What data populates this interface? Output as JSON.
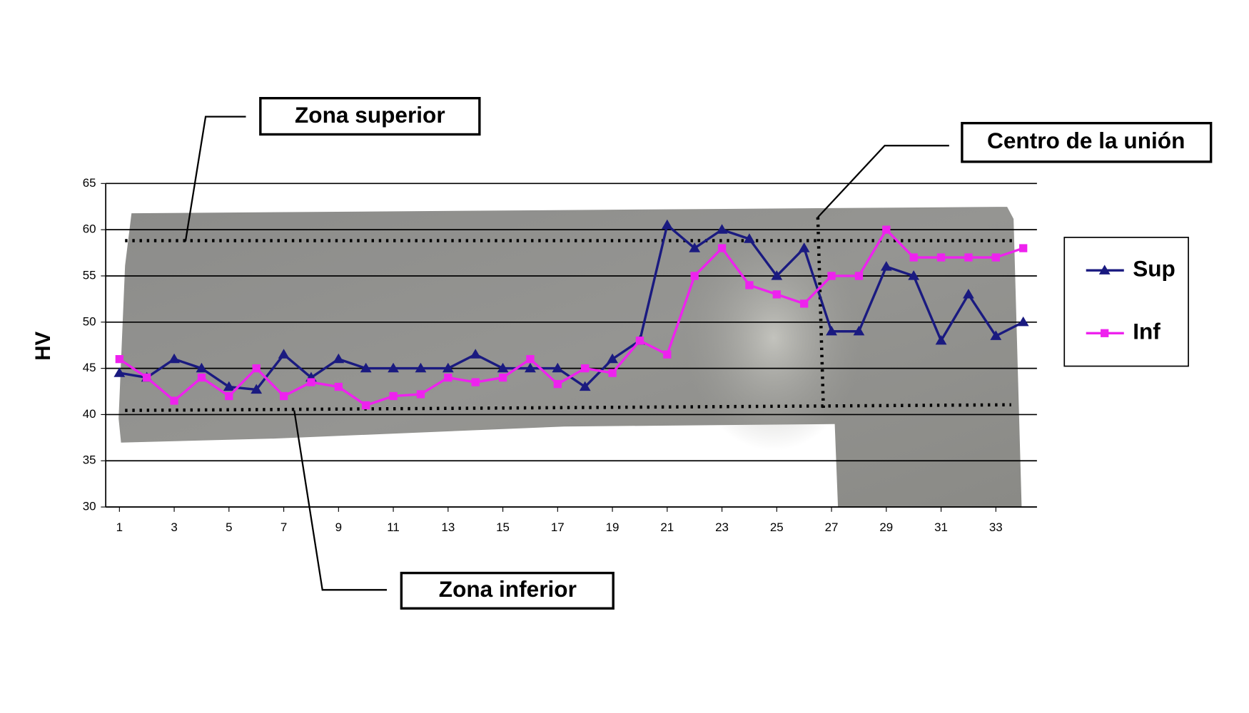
{
  "chart_data": {
    "type": "line",
    "y_label": "HV",
    "annotations": [
      "Zona superior",
      "Centro de la unión",
      "Zona inferior"
    ],
    "x": [
      1,
      2,
      3,
      4,
      5,
      6,
      7,
      8,
      9,
      10,
      11,
      12,
      13,
      14,
      15,
      16,
      17,
      18,
      19,
      20,
      21,
      22,
      23,
      24,
      25,
      26,
      27,
      28,
      29,
      30,
      31,
      32,
      33,
      34
    ],
    "xlim": [
      0.5,
      34.5
    ],
    "xticks": [
      1,
      3,
      5,
      7,
      9,
      11,
      13,
      15,
      17,
      19,
      21,
      23,
      25,
      27,
      29,
      31,
      33
    ],
    "ylim": [
      30,
      65
    ],
    "yticks": [
      30,
      35,
      40,
      45,
      50,
      55,
      60,
      65
    ],
    "grid": true,
    "legend": "right",
    "series": [
      {
        "name": "Sup",
        "color": "#1a1a80",
        "marker": "triangle",
        "values": [
          44.5,
          44,
          46,
          45,
          43,
          42.7,
          46.5,
          44,
          46,
          45,
          45,
          45,
          45,
          46.5,
          45,
          45,
          45,
          43,
          46,
          48,
          60.5,
          58,
          60,
          59,
          55,
          58,
          49,
          49,
          56,
          55,
          48,
          53,
          48.5,
          50
        ]
      },
      {
        "name": "Inf",
        "color": "#ee22ee",
        "marker": "square",
        "values": [
          46,
          44,
          41.5,
          44,
          42,
          45,
          42,
          43.5,
          43,
          41,
          42,
          42.2,
          44,
          43.5,
          44,
          46,
          43.3,
          45,
          44.5,
          48,
          46.5,
          55,
          58,
          54,
          53,
          52,
          55,
          55,
          60,
          57,
          57,
          57,
          57,
          58
        ]
      }
    ]
  }
}
